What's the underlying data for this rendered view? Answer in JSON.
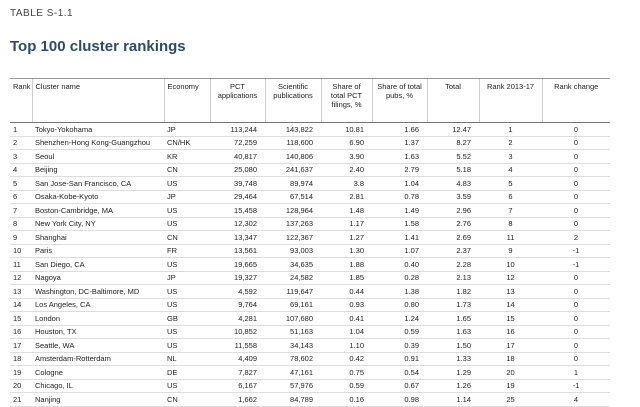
{
  "label": "TABLE S-1.1",
  "title": "Top 100 cluster rankings",
  "table": {
    "headers": [
      "Rank",
      "Cluster name",
      "Economy",
      "PCT applications",
      "Scientific publications",
      "Share of total PCT filings, %",
      "Share of total pubs, %",
      "Total",
      "Rank 2013-17",
      "Rank change"
    ],
    "rows": [
      [
        "1",
        "Tokyo-Yokohama",
        "JP",
        "113,244",
        "143,822",
        "10.81",
        "1.66",
        "12.47",
        "1",
        "0"
      ],
      [
        "2",
        "Shenzhen-Hong Kong-Guangzhou",
        "CN/HK",
        "72,259",
        "118,600",
        "6.90",
        "1.37",
        "8.27",
        "2",
        "0"
      ],
      [
        "3",
        "Seoul",
        "KR",
        "40,817",
        "140,806",
        "3.90",
        "1.63",
        "5.52",
        "3",
        "0"
      ],
      [
        "4",
        "Beijing",
        "CN",
        "25,080",
        "241,637",
        "2.40",
        "2.79",
        "5.18",
        "4",
        "0"
      ],
      [
        "5",
        "San Jose-San Francisco, CA",
        "US",
        "39,748",
        "89,974",
        "3.8",
        "1.04",
        "4.83",
        "5",
        "0"
      ],
      [
        "6",
        "Osaka-Kobe-Kyoto",
        "JP",
        "29,464",
        "67,514",
        "2.81",
        "0.78",
        "3.59",
        "6",
        "0"
      ],
      [
        "7",
        "Boston-Cambridge, MA",
        "US",
        "15,458",
        "128,964",
        "1.48",
        "1.49",
        "2.96",
        "7",
        "0"
      ],
      [
        "8",
        "New York City, NY",
        "US",
        "12,302",
        "137,263",
        "1.17",
        "1.58",
        "2.76",
        "8",
        "0"
      ],
      [
        "9",
        "Shanghai",
        "CN",
        "13,347",
        "122,367",
        "1.27",
        "1.41",
        "2.69",
        "11",
        "2"
      ],
      [
        "10",
        "Paris",
        "FR",
        "13,561",
        "93,003",
        "1.30",
        "1.07",
        "2.37",
        "9",
        "-1"
      ],
      [
        "11",
        "San Diego, CA",
        "US",
        "19,665",
        "34,635",
        "1.88",
        "0.40",
        "2.28",
        "10",
        "-1"
      ],
      [
        "12",
        "Nagoya",
        "JP",
        "19,327",
        "24,582",
        "1.85",
        "0.28",
        "2.13",
        "12",
        "0"
      ],
      [
        "13",
        "Washington, DC-Baltimore, MD",
        "US",
        "4,592",
        "119,647",
        "0.44",
        "1.38",
        "1.82",
        "13",
        "0"
      ],
      [
        "14",
        "Los Angeles, CA",
        "US",
        "9,764",
        "69,161",
        "0.93",
        "0.80",
        "1.73",
        "14",
        "0"
      ],
      [
        "15",
        "London",
        "GB",
        "4,281",
        "107,680",
        "0.41",
        "1.24",
        "1.65",
        "15",
        "0"
      ],
      [
        "16",
        "Houston, TX",
        "US",
        "10,852",
        "51,163",
        "1.04",
        "0.59",
        "1.63",
        "16",
        "0"
      ],
      [
        "17",
        "Seattle, WA",
        "US",
        "11,558",
        "34,143",
        "1.10",
        "0.39",
        "1.50",
        "17",
        "0"
      ],
      [
        "18",
        "Amsterdam-Rotterdam",
        "NL",
        "4,409",
        "78,602",
        "0.42",
        "0.91",
        "1.33",
        "18",
        "0"
      ],
      [
        "19",
        "Cologne",
        "DE",
        "7,827",
        "47,161",
        "0.75",
        "0.54",
        "1.29",
        "20",
        "1"
      ],
      [
        "20",
        "Chicago, IL",
        "US",
        "6,167",
        "57,976",
        "0.59",
        "0.67",
        "1.26",
        "19",
        "-1"
      ],
      [
        "21",
        "Nanjing",
        "CN",
        "1,662",
        "84,789",
        "0.16",
        "0.98",
        "1.14",
        "25",
        "4"
      ]
    ]
  }
}
